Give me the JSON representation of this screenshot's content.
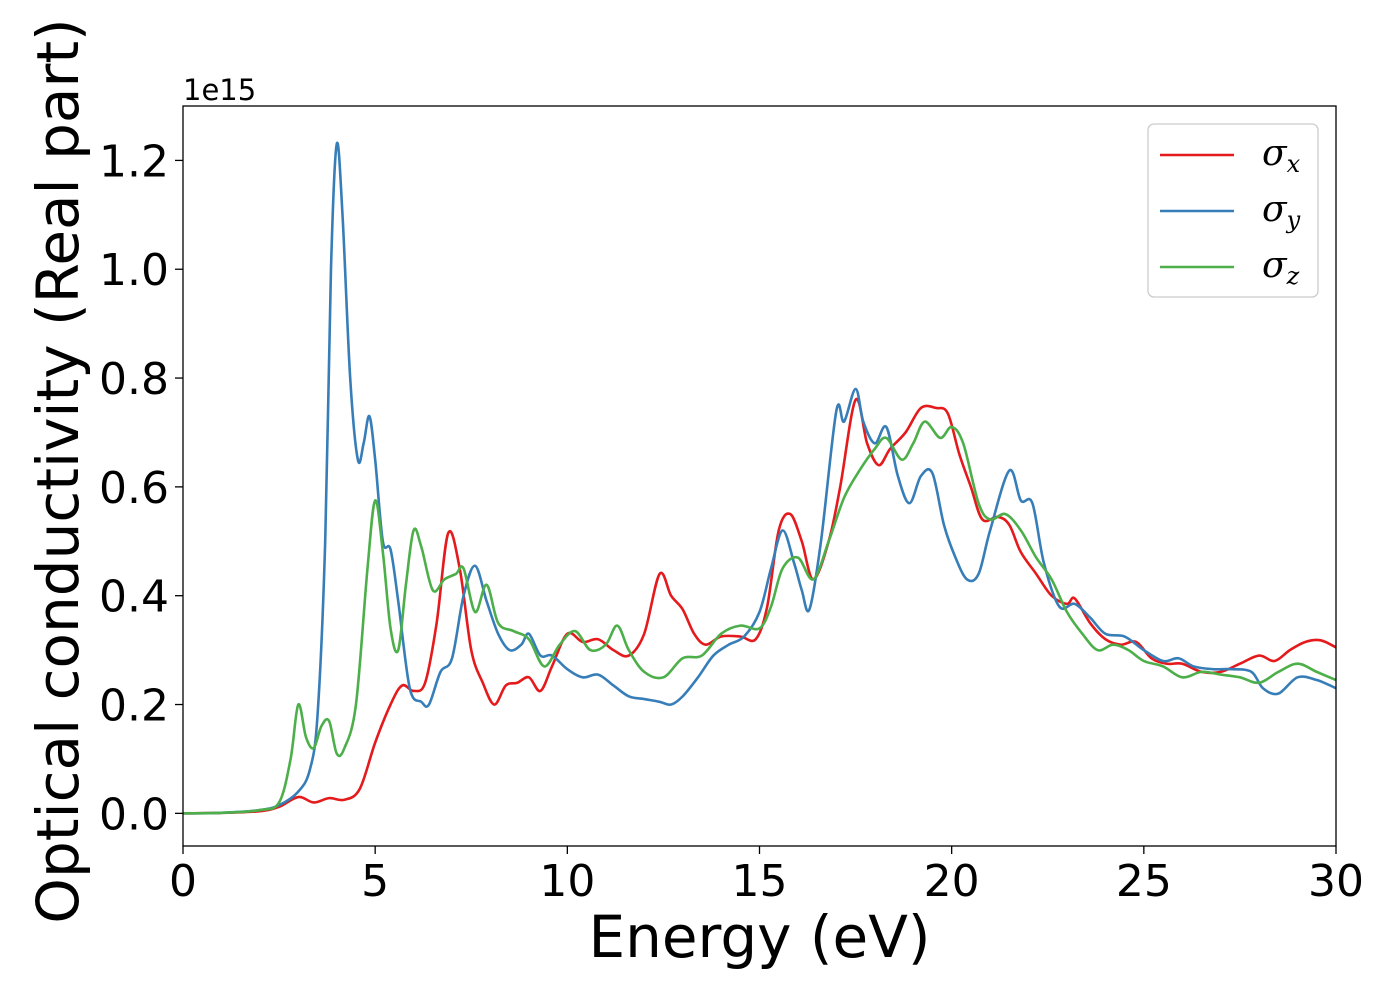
{
  "chart_data": {
    "type": "line",
    "title": "",
    "xlabel": "Energy (eV)",
    "ylabel": "Optical conductivity (Real part)",
    "y_offset_label": "1e15",
    "xlim": [
      0,
      30
    ],
    "ylim": [
      -0.06,
      1.3
    ],
    "x_ticks": [
      0,
      5,
      10,
      15,
      20,
      25,
      30
    ],
    "x_tick_labels": [
      "0",
      "5",
      "10",
      "15",
      "20",
      "25",
      "30"
    ],
    "y_ticks": [
      0.0,
      0.2,
      0.4,
      0.6,
      0.8,
      1.0,
      1.2
    ],
    "y_tick_labels": [
      "0.0",
      "0.2",
      "0.4",
      "0.6",
      "0.8",
      "1.0",
      "1.2"
    ],
    "grid": false,
    "legend_position": "top-right",
    "series": [
      {
        "name": "σx",
        "legend_symbol": "σ",
        "legend_sub": "x",
        "color": "#e41a1c",
        "points": [
          [
            0,
            0
          ],
          [
            1,
            0.001
          ],
          [
            2,
            0.004
          ],
          [
            2.5,
            0.012
          ],
          [
            3,
            0.03
          ],
          [
            3.4,
            0.02
          ],
          [
            3.8,
            0.028
          ],
          [
            4.2,
            0.025
          ],
          [
            4.6,
            0.045
          ],
          [
            5,
            0.13
          ],
          [
            5.4,
            0.2
          ],
          [
            5.7,
            0.235
          ],
          [
            6.0,
            0.225
          ],
          [
            6.3,
            0.24
          ],
          [
            6.6,
            0.35
          ],
          [
            6.9,
            0.515
          ],
          [
            7.2,
            0.45
          ],
          [
            7.5,
            0.3
          ],
          [
            7.8,
            0.24
          ],
          [
            8.1,
            0.2
          ],
          [
            8.4,
            0.235
          ],
          [
            8.7,
            0.24
          ],
          [
            9.0,
            0.25
          ],
          [
            9.3,
            0.225
          ],
          [
            9.6,
            0.27
          ],
          [
            10.0,
            0.33
          ],
          [
            10.4,
            0.315
          ],
          [
            10.8,
            0.32
          ],
          [
            11.2,
            0.3
          ],
          [
            11.6,
            0.29
          ],
          [
            12.0,
            0.33
          ],
          [
            12.4,
            0.44
          ],
          [
            12.7,
            0.4
          ],
          [
            13.0,
            0.375
          ],
          [
            13.3,
            0.33
          ],
          [
            13.6,
            0.31
          ],
          [
            14.0,
            0.325
          ],
          [
            14.5,
            0.325
          ],
          [
            14.9,
            0.32
          ],
          [
            15.2,
            0.38
          ],
          [
            15.5,
            0.52
          ],
          [
            15.8,
            0.55
          ],
          [
            16.1,
            0.5
          ],
          [
            16.4,
            0.43
          ],
          [
            16.8,
            0.5
          ],
          [
            17.1,
            0.6
          ],
          [
            17.5,
            0.76
          ],
          [
            17.8,
            0.68
          ],
          [
            18.1,
            0.64
          ],
          [
            18.4,
            0.67
          ],
          [
            18.8,
            0.7
          ],
          [
            19.2,
            0.745
          ],
          [
            19.6,
            0.745
          ],
          [
            19.9,
            0.735
          ],
          [
            20.2,
            0.66
          ],
          [
            20.5,
            0.6
          ],
          [
            20.8,
            0.54
          ],
          [
            21.2,
            0.545
          ],
          [
            21.5,
            0.53
          ],
          [
            21.8,
            0.48
          ],
          [
            22.2,
            0.44
          ],
          [
            22.6,
            0.4
          ],
          [
            23.0,
            0.385
          ],
          [
            23.2,
            0.395
          ],
          [
            23.6,
            0.35
          ],
          [
            24.0,
            0.32
          ],
          [
            24.4,
            0.31
          ],
          [
            24.8,
            0.315
          ],
          [
            25.2,
            0.285
          ],
          [
            25.6,
            0.275
          ],
          [
            26.0,
            0.275
          ],
          [
            26.5,
            0.26
          ],
          [
            27.0,
            0.26
          ],
          [
            27.5,
            0.275
          ],
          [
            28.0,
            0.29
          ],
          [
            28.4,
            0.28
          ],
          [
            28.8,
            0.3
          ],
          [
            29.2,
            0.315
          ],
          [
            29.6,
            0.318
          ],
          [
            30.0,
            0.305
          ]
        ]
      },
      {
        "name": "σy",
        "legend_symbol": "σ",
        "legend_sub": "y",
        "color": "#377eb8",
        "points": [
          [
            0,
            0
          ],
          [
            1,
            0.001
          ],
          [
            2,
            0.006
          ],
          [
            2.5,
            0.015
          ],
          [
            3,
            0.04
          ],
          [
            3.3,
            0.08
          ],
          [
            3.5,
            0.18
          ],
          [
            3.7,
            0.5
          ],
          [
            3.85,
            1.0
          ],
          [
            4.0,
            1.23
          ],
          [
            4.15,
            1.1
          ],
          [
            4.35,
            0.8
          ],
          [
            4.55,
            0.65
          ],
          [
            4.7,
            0.68
          ],
          [
            4.85,
            0.73
          ],
          [
            5.0,
            0.65
          ],
          [
            5.2,
            0.5
          ],
          [
            5.4,
            0.485
          ],
          [
            5.6,
            0.39
          ],
          [
            5.9,
            0.23
          ],
          [
            6.2,
            0.205
          ],
          [
            6.4,
            0.2
          ],
          [
            6.7,
            0.26
          ],
          [
            7.0,
            0.285
          ],
          [
            7.3,
            0.4
          ],
          [
            7.6,
            0.455
          ],
          [
            7.9,
            0.39
          ],
          [
            8.2,
            0.33
          ],
          [
            8.5,
            0.3
          ],
          [
            8.8,
            0.31
          ],
          [
            9.0,
            0.33
          ],
          [
            9.3,
            0.29
          ],
          [
            9.6,
            0.29
          ],
          [
            10.0,
            0.265
          ],
          [
            10.4,
            0.25
          ],
          [
            10.8,
            0.255
          ],
          [
            11.2,
            0.235
          ],
          [
            11.6,
            0.215
          ],
          [
            12.0,
            0.21
          ],
          [
            12.4,
            0.205
          ],
          [
            12.7,
            0.2
          ],
          [
            13.0,
            0.215
          ],
          [
            13.4,
            0.25
          ],
          [
            13.8,
            0.29
          ],
          [
            14.2,
            0.31
          ],
          [
            14.6,
            0.325
          ],
          [
            15.0,
            0.37
          ],
          [
            15.3,
            0.45
          ],
          [
            15.6,
            0.52
          ],
          [
            15.9,
            0.46
          ],
          [
            16.1,
            0.41
          ],
          [
            16.3,
            0.375
          ],
          [
            16.6,
            0.5
          ],
          [
            17.0,
            0.74
          ],
          [
            17.2,
            0.72
          ],
          [
            17.5,
            0.78
          ],
          [
            17.7,
            0.72
          ],
          [
            18.0,
            0.68
          ],
          [
            18.3,
            0.71
          ],
          [
            18.6,
            0.62
          ],
          [
            18.9,
            0.57
          ],
          [
            19.2,
            0.62
          ],
          [
            19.5,
            0.625
          ],
          [
            19.8,
            0.53
          ],
          [
            20.1,
            0.47
          ],
          [
            20.4,
            0.43
          ],
          [
            20.7,
            0.44
          ],
          [
            21.0,
            0.52
          ],
          [
            21.5,
            0.63
          ],
          [
            21.8,
            0.575
          ],
          [
            22.1,
            0.57
          ],
          [
            22.4,
            0.46
          ],
          [
            22.8,
            0.38
          ],
          [
            23.2,
            0.385
          ],
          [
            23.6,
            0.36
          ],
          [
            24.0,
            0.33
          ],
          [
            24.5,
            0.325
          ],
          [
            25.0,
            0.3
          ],
          [
            25.5,
            0.28
          ],
          [
            25.9,
            0.285
          ],
          [
            26.3,
            0.27
          ],
          [
            26.8,
            0.265
          ],
          [
            27.3,
            0.265
          ],
          [
            27.8,
            0.26
          ],
          [
            28.1,
            0.23
          ],
          [
            28.5,
            0.22
          ],
          [
            29.0,
            0.25
          ],
          [
            29.5,
            0.245
          ],
          [
            30.0,
            0.23
          ]
        ]
      },
      {
        "name": "σz",
        "legend_symbol": "σ",
        "legend_sub": "z",
        "color": "#4daf4a",
        "points": [
          [
            0,
            0
          ],
          [
            1,
            0.001
          ],
          [
            2,
            0.006
          ],
          [
            2.5,
            0.02
          ],
          [
            2.8,
            0.1
          ],
          [
            3.0,
            0.2
          ],
          [
            3.2,
            0.14
          ],
          [
            3.4,
            0.12
          ],
          [
            3.6,
            0.16
          ],
          [
            3.8,
            0.17
          ],
          [
            4.0,
            0.11
          ],
          [
            4.2,
            0.12
          ],
          [
            4.5,
            0.2
          ],
          [
            4.8,
            0.45
          ],
          [
            5.0,
            0.575
          ],
          [
            5.2,
            0.48
          ],
          [
            5.4,
            0.34
          ],
          [
            5.6,
            0.3
          ],
          [
            5.8,
            0.42
          ],
          [
            6.0,
            0.52
          ],
          [
            6.2,
            0.49
          ],
          [
            6.5,
            0.41
          ],
          [
            6.8,
            0.43
          ],
          [
            7.1,
            0.44
          ],
          [
            7.3,
            0.45
          ],
          [
            7.6,
            0.37
          ],
          [
            7.9,
            0.42
          ],
          [
            8.2,
            0.35
          ],
          [
            8.6,
            0.335
          ],
          [
            9.0,
            0.32
          ],
          [
            9.4,
            0.27
          ],
          [
            9.8,
            0.31
          ],
          [
            10.2,
            0.335
          ],
          [
            10.6,
            0.3
          ],
          [
            11.0,
            0.31
          ],
          [
            11.3,
            0.345
          ],
          [
            11.6,
            0.3
          ],
          [
            12.0,
            0.26
          ],
          [
            12.5,
            0.25
          ],
          [
            13.0,
            0.285
          ],
          [
            13.5,
            0.29
          ],
          [
            14.0,
            0.33
          ],
          [
            14.5,
            0.345
          ],
          [
            15.0,
            0.34
          ],
          [
            15.3,
            0.38
          ],
          [
            15.6,
            0.45
          ],
          [
            16.0,
            0.47
          ],
          [
            16.4,
            0.43
          ],
          [
            16.8,
            0.5
          ],
          [
            17.2,
            0.58
          ],
          [
            17.6,
            0.63
          ],
          [
            18.0,
            0.67
          ],
          [
            18.3,
            0.69
          ],
          [
            18.7,
            0.65
          ],
          [
            19.0,
            0.68
          ],
          [
            19.3,
            0.72
          ],
          [
            19.7,
            0.69
          ],
          [
            20.0,
            0.71
          ],
          [
            20.3,
            0.68
          ],
          [
            20.7,
            0.57
          ],
          [
            21.0,
            0.54
          ],
          [
            21.4,
            0.55
          ],
          [
            21.8,
            0.52
          ],
          [
            22.2,
            0.47
          ],
          [
            22.6,
            0.43
          ],
          [
            23.0,
            0.37
          ],
          [
            23.4,
            0.33
          ],
          [
            23.8,
            0.3
          ],
          [
            24.2,
            0.31
          ],
          [
            24.6,
            0.3
          ],
          [
            25.0,
            0.28
          ],
          [
            25.5,
            0.27
          ],
          [
            26.0,
            0.25
          ],
          [
            26.5,
            0.26
          ],
          [
            27.0,
            0.255
          ],
          [
            27.5,
            0.25
          ],
          [
            28.0,
            0.24
          ],
          [
            28.5,
            0.26
          ],
          [
            29.0,
            0.275
          ],
          [
            29.5,
            0.26
          ],
          [
            30.0,
            0.245
          ]
        ]
      }
    ]
  }
}
